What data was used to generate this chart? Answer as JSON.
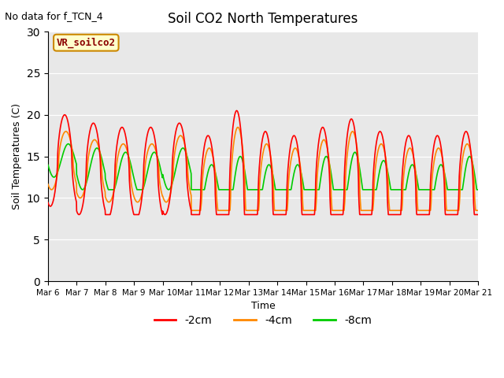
{
  "title": "Soil CO2 North Temperatures",
  "subtitle": "No data for f_TCN_4",
  "ylabel": "Soil Temperatures (C)",
  "xlabel": "Time",
  "legend_box_label": "VR_soilco2",
  "ylim": [
    0,
    30
  ],
  "yticks": [
    0,
    5,
    10,
    15,
    20,
    25,
    30
  ],
  "background_color": "#e8e8e8",
  "legend_entries": [
    "-2cm",
    "-4cm",
    "-8cm"
  ],
  "legend_colors": [
    "#ff0000",
    "#ff8800",
    "#00cc00"
  ],
  "line_colors": [
    "#ff0000",
    "#ff8800",
    "#00cc00"
  ],
  "x_labels": [
    "Mar 6",
    "Mar 7",
    "Mar 8",
    "Mar 9",
    "Mar 10",
    "Mar 11",
    "Mar 12",
    "Mar 13",
    "Mar 14",
    "Mar 15",
    "Mar 16",
    "Mar 17",
    "Mar 18",
    "Mar 19",
    "Mar 20",
    "Mar 21"
  ],
  "num_days": 15,
  "points_per_day": 144,
  "day_means": [
    14.5,
    13.5,
    13.0,
    13.0,
    13.5,
    11.0,
    11.0,
    10.5,
    10.5,
    11.0,
    11.5,
    11.0,
    10.5,
    10.5,
    11.0
  ],
  "day_amps_2": [
    5.5,
    5.5,
    5.5,
    5.5,
    5.5,
    6.5,
    9.5,
    7.5,
    7.0,
    7.5,
    8.0,
    7.0,
    7.0,
    7.0,
    7.0
  ],
  "day_amps_4": [
    3.5,
    3.5,
    3.5,
    3.5,
    4.0,
    5.0,
    7.5,
    6.0,
    5.5,
    6.0,
    6.5,
    5.5,
    5.5,
    5.5,
    5.5
  ],
  "day_amps_8": [
    2.0,
    2.5,
    2.5,
    2.5,
    2.5,
    3.0,
    4.0,
    3.5,
    3.5,
    4.0,
    4.0,
    3.5,
    3.5,
    3.5,
    4.0
  ],
  "peak_hour_2": 14.0,
  "peak_hour_4": 15.0,
  "peak_hour_8": 17.0,
  "figsize": [
    6.4,
    4.8
  ],
  "dpi": 100
}
